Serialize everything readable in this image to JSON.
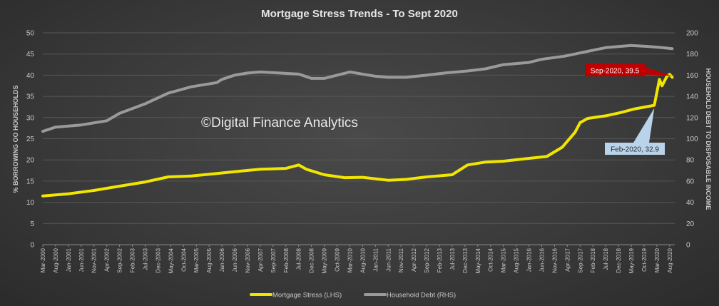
{
  "chart_data": {
    "type": "line",
    "title": "Mortgage Stress Trends - To Sept 2020",
    "ylabel": "% BORROWING OO HOUSEHOLDS",
    "y2label": "HOUSEHOLD DEBT TO DISPOSABLE INCOME",
    "ylim": [
      0,
      50
    ],
    "y2lim": [
      0,
      200
    ],
    "yticks": [
      "0",
      "5",
      "10",
      "15",
      "20",
      "25",
      "30",
      "35",
      "40",
      "45",
      "50"
    ],
    "y2ticks": [
      "0",
      "20",
      "40",
      "60",
      "80",
      "100",
      "120",
      "140",
      "160",
      "180",
      "200"
    ],
    "x_tick_labels": [
      "Mar-2000",
      "Aug-2000",
      "Jan-2001",
      "Jun-2001",
      "Nov-2001",
      "Apr-2002",
      "Sep-2002",
      "Feb-2003",
      "Jul-2003",
      "Dec-2003",
      "May-2004",
      "Oct-2004",
      "Mar-2005",
      "Aug-2005",
      "Jan-2006",
      "Jun-2006",
      "Nov-2006",
      "Apr-2007",
      "Sep-2007",
      "Feb-2008",
      "Jul-2008",
      "Dec-2008",
      "May-2009",
      "Oct-2009",
      "Mar-2010",
      "Aug-2010",
      "Jan-2011",
      "Jun-2011",
      "Nov-2011",
      "Apr-2012",
      "Sep-2012",
      "Feb-2013",
      "Jul-2013",
      "Dec-2013",
      "May-2014",
      "Oct-2014",
      "Mar-2015",
      "Aug-2015",
      "Jan-2016",
      "Jun-2016",
      "Nov-2016",
      "Apr-2017",
      "Sep-2017",
      "Feb-2018",
      "Jul-2018",
      "Dec-2018",
      "May-2019",
      "Oct-2019",
      "Mar-2020",
      "Aug-2020"
    ],
    "x_range": [
      "Mar-2000",
      "Oct-2020"
    ],
    "series": [
      {
        "name": "Mortgage Stress (LHS)",
        "axis": "left",
        "color": "#f2e600",
        "x": [
          "Mar-2000",
          "Jan-2001",
          "Nov-2001",
          "Sep-2002",
          "Jul-2003",
          "Apr-2004",
          "Jan-2005",
          "Nov-2005",
          "Sep-2006",
          "Apr-2007",
          "Feb-2008",
          "Jul-2008",
          "Oct-2008",
          "May-2009",
          "Jan-2010",
          "Aug-2010",
          "Jun-2011",
          "Jan-2012",
          "Sep-2012",
          "Jul-2013",
          "Jan-2014",
          "Aug-2014",
          "Mar-2015",
          "Dec-2015",
          "Aug-2016",
          "Feb-2017",
          "Jul-2017",
          "Sep-2017",
          "Dec-2017",
          "Jul-2018",
          "Jan-2019",
          "Jun-2019",
          "Feb-2020",
          "Apr-2020",
          "May-2020",
          "Jul-2020",
          "Aug-2020",
          "Sep-2020"
        ],
        "values": [
          11.5,
          12.0,
          12.8,
          13.8,
          14.8,
          16.0,
          16.2,
          16.8,
          17.4,
          17.8,
          18.0,
          18.8,
          17.8,
          16.5,
          15.8,
          15.9,
          15.2,
          15.4,
          16.0,
          16.5,
          18.8,
          19.5,
          19.7,
          20.3,
          20.8,
          23.0,
          26.5,
          28.8,
          29.8,
          30.4,
          31.2,
          32.0,
          32.9,
          39.0,
          37.5,
          39.8,
          40.2,
          39.5
        ]
      },
      {
        "name": "Household Debt (RHS)",
        "axis": "right",
        "color": "#9a9a9a",
        "x": [
          "Mar-2000",
          "Aug-2000",
          "Jun-2001",
          "Apr-2002",
          "Sep-2002",
          "Jul-2003",
          "Apr-2004",
          "Jan-2005",
          "Nov-2005",
          "Jan-2006",
          "Jun-2006",
          "Nov-2006",
          "Apr-2007",
          "Jul-2008",
          "Dec-2008",
          "May-2009",
          "Mar-2010",
          "Jan-2011",
          "Jun-2011",
          "Jan-2012",
          "Sep-2012",
          "Apr-2013",
          "Jan-2014",
          "Aug-2014",
          "Mar-2015",
          "Jan-2016",
          "Jun-2016",
          "Mar-2017",
          "Jan-2018",
          "Jul-2018",
          "Dec-2018",
          "May-2019",
          "Dec-2019",
          "May-2020",
          "Sep-2020"
        ],
        "values": [
          107,
          111,
          113,
          117,
          124,
          133,
          143,
          149,
          153,
          156,
          160,
          162,
          163,
          161,
          157,
          157,
          163,
          159,
          158,
          158,
          160,
          162,
          164,
          166,
          170,
          172,
          175,
          178,
          183,
          186,
          187,
          188,
          187,
          186,
          185
        ]
      }
    ],
    "annotations": [
      {
        "text": "Sep-2020, 39.5",
        "x": "Sep-2020",
        "y": 39.5,
        "series": "Mortgage Stress (LHS)",
        "bg": "#c00000",
        "fg": "#ffffff"
      },
      {
        "text": "Feb-2020, 32.9",
        "x": "Feb-2020",
        "y": 32.9,
        "series": "Mortgage Stress (LHS)",
        "bg": "#b9d4ea",
        "fg": "#2a2a2a"
      }
    ],
    "watermark": "©Digital Finance Analytics",
    "grid": true,
    "legend_position": "bottom"
  }
}
